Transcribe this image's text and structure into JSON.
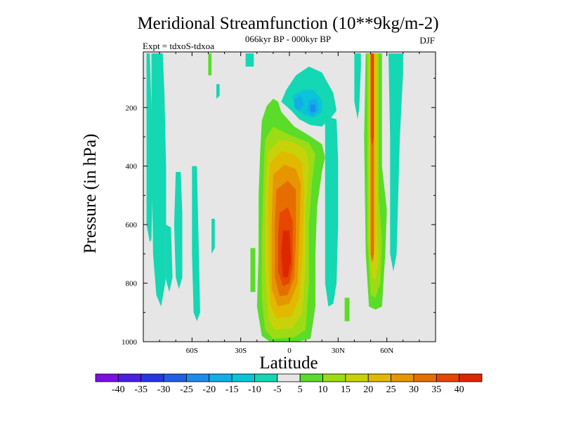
{
  "chart_data": {
    "type": "heatmap",
    "title": "Meridional Streamfunction (10**9kg/m-2)",
    "subtitle": "066kyr BP - 000kyr BP",
    "left_label": "Expt = tdxoS-tdxoa",
    "right_label": "DJF",
    "xlabel": "Latitude",
    "ylabel": "Pressure (in hPa)",
    "xlim": [
      -90,
      90
    ],
    "ylim": [
      1000,
      10
    ],
    "y_inverted": true,
    "x_ticks": [
      {
        "value": -60,
        "label": "60S"
      },
      {
        "value": -30,
        "label": "30S"
      },
      {
        "value": 0,
        "label": "0"
      },
      {
        "value": 30,
        "label": "30N"
      },
      {
        "value": 60,
        "label": "60N"
      }
    ],
    "y_ticks": [
      {
        "value": 200,
        "label": "200"
      },
      {
        "value": 400,
        "label": "400"
      },
      {
        "value": 600,
        "label": "600"
      },
      {
        "value": 800,
        "label": "800"
      },
      {
        "value": 1000,
        "label": "1000"
      }
    ],
    "grid": false,
    "legend": "colorbar-bottom",
    "levels": [
      -40,
      -35,
      -30,
      -25,
      -20,
      -15,
      -10,
      -5,
      5,
      10,
      15,
      20,
      25,
      30,
      35,
      40
    ],
    "level_labels": [
      "-40",
      "-35",
      "-30",
      "-25",
      "-20",
      "-15",
      "-10",
      "-5",
      "5",
      "10",
      "15",
      "20",
      "25",
      "30",
      "35",
      "40"
    ],
    "colors": [
      "#7d0fe0",
      "#4b1ee0",
      "#2437e0",
      "#1f5fe6",
      "#1b8ced",
      "#12aee8",
      "#0ac4d9",
      "#14d7b3",
      "#e6e6e6",
      "#5adc28",
      "#9bdc14",
      "#c8d20a",
      "#e1b900",
      "#e69600",
      "#e66e00",
      "#e64600",
      "#dc2800"
    ],
    "regions": [
      {
        "name": "sh-poleward-left",
        "value": -7,
        "points": [
          [
            -88,
            15
          ],
          [
            -86,
            15
          ],
          [
            -85,
            200
          ],
          [
            -84,
            400
          ],
          [
            -85,
            650
          ],
          [
            -86,
            660
          ],
          [
            -88,
            600
          ]
        ]
      },
      {
        "name": "sh-band-a",
        "value": -7,
        "points": [
          [
            -85,
            15
          ],
          [
            -78,
            15
          ],
          [
            -77,
            150
          ],
          [
            -76,
            400
          ],
          [
            -76,
            780
          ],
          [
            -79,
            880
          ],
          [
            -82,
            840
          ],
          [
            -84,
            700
          ],
          [
            -85,
            300
          ]
        ]
      },
      {
        "name": "sh-band-b",
        "value": -7,
        "points": [
          [
            -76,
            600
          ],
          [
            -73,
            610
          ],
          [
            -72,
            780
          ],
          [
            -74,
            830
          ],
          [
            -76,
            790
          ]
        ]
      },
      {
        "name": "sh-band-c",
        "value": -7,
        "points": [
          [
            -70,
            420
          ],
          [
            -67,
            420
          ],
          [
            -66,
            560
          ],
          [
            -66,
            780
          ],
          [
            -68,
            820
          ],
          [
            -70,
            780
          ],
          [
            -71,
            600
          ]
        ]
      },
      {
        "name": "sh-band-d",
        "value": -7,
        "points": [
          [
            -60,
            400
          ],
          [
            -57,
            400
          ],
          [
            -56,
            650
          ],
          [
            -55,
            900
          ],
          [
            -57,
            930
          ],
          [
            -59,
            900
          ],
          [
            -60,
            700
          ]
        ]
      },
      {
        "name": "sh-speck-1",
        "value": -7,
        "points": [
          [
            -48,
            580
          ],
          [
            -46,
            580
          ],
          [
            -46,
            680
          ],
          [
            -48,
            700
          ]
        ]
      },
      {
        "name": "sh-speck-2",
        "value": -7,
        "points": [
          [
            -45,
            120
          ],
          [
            -43,
            120
          ],
          [
            -43,
            160
          ],
          [
            -45,
            170
          ]
        ]
      },
      {
        "name": "top-speck",
        "value": 7,
        "points": [
          [
            -50,
            15
          ],
          [
            -48,
            15
          ],
          [
            -48,
            90
          ],
          [
            -50,
            90
          ]
        ]
      },
      {
        "name": "sh-speck-3",
        "value": -7,
        "points": [
          [
            -27,
            15
          ],
          [
            -22,
            15
          ],
          [
            -22,
            60
          ],
          [
            -27,
            60
          ]
        ]
      },
      {
        "name": "subsidence-left-strip",
        "value": 7,
        "points": [
          [
            -24,
            680
          ],
          [
            -21,
            680
          ],
          [
            -21,
            830
          ],
          [
            -24,
            830
          ]
        ]
      },
      {
        "name": "hadley-l1",
        "value": 7,
        "points": [
          [
            -17,
            245
          ],
          [
            -14,
            195
          ],
          [
            -10,
            170
          ],
          [
            -7,
            180
          ],
          [
            -5,
            215
          ],
          [
            3,
            265
          ],
          [
            12,
            295
          ],
          [
            20,
            325
          ],
          [
            22,
            370
          ],
          [
            20,
            420
          ],
          [
            17,
            540
          ],
          [
            16,
            700
          ],
          [
            16,
            880
          ],
          [
            13,
            990
          ],
          [
            5,
            1000
          ],
          [
            -12,
            1000
          ],
          [
            -17,
            980
          ],
          [
            -20,
            880
          ],
          [
            -19,
            700
          ],
          [
            -19,
            500
          ],
          [
            -18,
            350
          ]
        ]
      },
      {
        "name": "hadley-l2",
        "value": 12,
        "points": [
          [
            -15,
            310
          ],
          [
            -10,
            265
          ],
          [
            -5,
            280
          ],
          [
            3,
            300
          ],
          [
            12,
            320
          ],
          [
            16,
            360
          ],
          [
            14,
            450
          ],
          [
            12,
            600
          ],
          [
            12,
            800
          ],
          [
            10,
            960
          ],
          [
            3,
            985
          ],
          [
            -10,
            990
          ],
          [
            -15,
            960
          ],
          [
            -17,
            850
          ],
          [
            -17,
            650
          ],
          [
            -16,
            450
          ]
        ]
      },
      {
        "name": "hadley-l3",
        "value": 17,
        "points": [
          [
            -13,
            350
          ],
          [
            -6,
            310
          ],
          [
            3,
            320
          ],
          [
            10,
            345
          ],
          [
            12,
            400
          ],
          [
            10,
            550
          ],
          [
            10,
            750
          ],
          [
            8,
            900
          ],
          [
            2,
            955
          ],
          [
            -9,
            960
          ],
          [
            -13,
            920
          ],
          [
            -15,
            750
          ],
          [
            -15,
            550
          ],
          [
            -14,
            420
          ]
        ]
      },
      {
        "name": "hadley-l4",
        "value": 22,
        "points": [
          [
            -12,
            390
          ],
          [
            -5,
            350
          ],
          [
            3,
            360
          ],
          [
            8,
            390
          ],
          [
            9,
            500
          ],
          [
            8,
            700
          ],
          [
            6,
            850
          ],
          [
            1,
            915
          ],
          [
            -8,
            920
          ],
          [
            -12,
            870
          ],
          [
            -13,
            700
          ],
          [
            -13,
            500
          ]
        ]
      },
      {
        "name": "hadley-l5",
        "value": 27,
        "points": [
          [
            -10,
            430
          ],
          [
            -3,
            395
          ],
          [
            4,
            410
          ],
          [
            7,
            460
          ],
          [
            6,
            650
          ],
          [
            5,
            800
          ],
          [
            0,
            870
          ],
          [
            -7,
            880
          ],
          [
            -11,
            820
          ],
          [
            -11,
            600
          ]
        ]
      },
      {
        "name": "hadley-l6",
        "value": 32,
        "points": [
          [
            -8,
            480
          ],
          [
            -1,
            450
          ],
          [
            4,
            480
          ],
          [
            4,
            650
          ],
          [
            3,
            780
          ],
          [
            -1,
            840
          ],
          [
            -6,
            845
          ],
          [
            -9,
            780
          ],
          [
            -9,
            600
          ]
        ]
      },
      {
        "name": "hadley-l7",
        "value": 37,
        "points": [
          [
            -6,
            560
          ],
          [
            -1,
            540
          ],
          [
            2,
            590
          ],
          [
            2,
            740
          ],
          [
            0,
            800
          ],
          [
            -4,
            810
          ],
          [
            -7,
            760
          ],
          [
            -7,
            640
          ]
        ]
      },
      {
        "name": "hadley-core",
        "value": 42,
        "points": [
          [
            -4,
            620
          ],
          [
            0,
            620
          ],
          [
            1,
            720
          ],
          [
            -1,
            780
          ],
          [
            -4,
            780
          ],
          [
            -5,
            700
          ]
        ]
      },
      {
        "name": "upper-neg-a",
        "value": -7,
        "points": [
          [
            4,
            90
          ],
          [
            12,
            60
          ],
          [
            20,
            80
          ],
          [
            27,
            150
          ],
          [
            29,
            210
          ],
          [
            25,
            240
          ],
          [
            20,
            265
          ],
          [
            13,
            260
          ],
          [
            6,
            240
          ],
          [
            1,
            210
          ],
          [
            -5,
            180
          ],
          [
            -2,
            140
          ]
        ]
      },
      {
        "name": "upper-neg-b",
        "value": -12,
        "points": [
          [
            2,
            160
          ],
          [
            8,
            140
          ],
          [
            15,
            140
          ],
          [
            20,
            175
          ],
          [
            20,
            215
          ],
          [
            15,
            235
          ],
          [
            9,
            225
          ],
          [
            4,
            205
          ]
        ]
      },
      {
        "name": "upper-neg-c",
        "value": -17,
        "points": [
          [
            3,
            170
          ],
          [
            7,
            160
          ],
          [
            9,
            190
          ],
          [
            6,
            210
          ],
          [
            3,
            200
          ]
        ]
      },
      {
        "name": "upper-neg-d",
        "value": -17,
        "points": [
          [
            12,
            175
          ],
          [
            17,
            170
          ],
          [
            18,
            210
          ],
          [
            14,
            230
          ],
          [
            11,
            210
          ]
        ]
      },
      {
        "name": "upper-neg-e",
        "value": -22,
        "points": [
          [
            13,
            190
          ],
          [
            16,
            190
          ],
          [
            16,
            215
          ],
          [
            13,
            215
          ]
        ]
      },
      {
        "name": "nh-sub-neg",
        "value": -7,
        "points": [
          [
            22,
            230
          ],
          [
            29,
            240
          ],
          [
            30,
            380
          ],
          [
            30,
            600
          ],
          [
            29,
            800
          ],
          [
            27,
            870
          ],
          [
            24,
            880
          ],
          [
            22,
            800
          ],
          [
            22,
            600
          ],
          [
            22,
            400
          ]
        ]
      },
      {
        "name": "nh-speck",
        "value": 7,
        "points": [
          [
            34,
            850
          ],
          [
            37,
            850
          ],
          [
            37,
            930
          ],
          [
            34,
            930
          ]
        ]
      },
      {
        "name": "nh-jet-l1",
        "value": 7,
        "points": [
          [
            47,
            15
          ],
          [
            57,
            15
          ],
          [
            57,
            400
          ],
          [
            60,
            550
          ],
          [
            59,
            700
          ],
          [
            57,
            880
          ],
          [
            53,
            890
          ],
          [
            49,
            880
          ],
          [
            47,
            700
          ],
          [
            46,
            300
          ]
        ]
      },
      {
        "name": "nh-jet-l2",
        "value": 12,
        "points": [
          [
            48,
            15
          ],
          [
            55,
            15
          ],
          [
            55,
            500
          ],
          [
            57,
            650
          ],
          [
            56,
            800
          ],
          [
            53,
            850
          ],
          [
            50,
            840
          ],
          [
            48,
            650
          ],
          [
            48,
            300
          ]
        ]
      },
      {
        "name": "nh-jet-l3",
        "value": 17,
        "points": [
          [
            49,
            15
          ],
          [
            54,
            15
          ],
          [
            54,
            600
          ],
          [
            55,
            720
          ],
          [
            53,
            790
          ],
          [
            51,
            780
          ],
          [
            49,
            650
          ]
        ]
      },
      {
        "name": "nh-jet-l4",
        "value": 22,
        "points": [
          [
            50,
            15
          ],
          [
            53,
            15
          ],
          [
            53,
            650
          ],
          [
            52,
            720
          ],
          [
            51,
            720
          ],
          [
            50,
            650
          ]
        ]
      },
      {
        "name": "nh-jet-l5",
        "value": 30,
        "points": [
          [
            50,
            15
          ],
          [
            52,
            15
          ],
          [
            52,
            700
          ],
          [
            51,
            730
          ],
          [
            50,
            700
          ]
        ]
      },
      {
        "name": "nh-jet-l6",
        "value": 37,
        "points": [
          [
            50,
            15
          ],
          [
            52,
            15
          ],
          [
            52,
            300
          ],
          [
            51,
            330
          ],
          [
            50,
            300
          ]
        ]
      },
      {
        "name": "nh-far-band",
        "value": -7,
        "points": [
          [
            61,
            15
          ],
          [
            70,
            15
          ],
          [
            70,
            80
          ],
          [
            68,
            300
          ],
          [
            66,
            700
          ],
          [
            64,
            760
          ],
          [
            62,
            700
          ],
          [
            62,
            300
          ]
        ]
      },
      {
        "name": "nh-left-neg",
        "value": -7,
        "points": [
          [
            40,
            15
          ],
          [
            44,
            15
          ],
          [
            44,
            60
          ],
          [
            43,
            200
          ],
          [
            42,
            240
          ],
          [
            40,
            180
          ]
        ]
      }
    ]
  }
}
